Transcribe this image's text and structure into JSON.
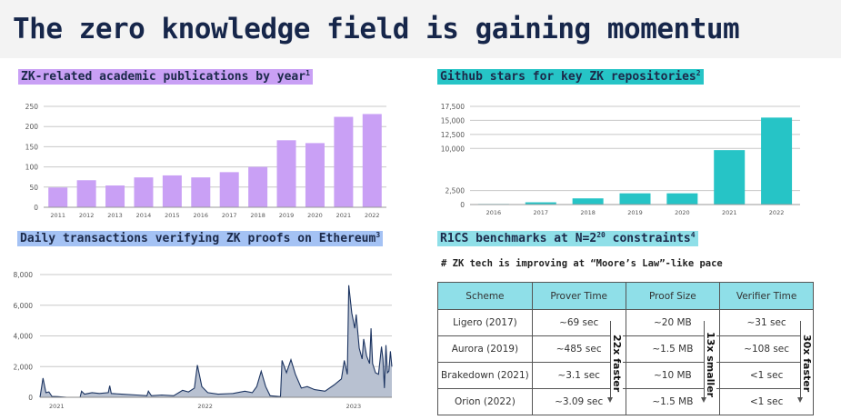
{
  "title": "The zero knowledge field is gaining momentum",
  "colors": {
    "purple": "#c9a0f5",
    "teal": "#26c4c6",
    "blue_hl": "#a4c2f4",
    "line": "#1c3461",
    "area": "#b8c1d1",
    "table_header": "#8fdfe8"
  },
  "chart_data": [
    {
      "type": "bar",
      "title": "ZK-related academic publications by year",
      "footnote_mark": "1",
      "categories": [
        "2011",
        "2012",
        "2013",
        "2014",
        "2015",
        "2016",
        "2017",
        "2018",
        "2019",
        "2020",
        "2021",
        "2022"
      ],
      "values": [
        49,
        67,
        54,
        74,
        79,
        74,
        87,
        100,
        166,
        159,
        224,
        231
      ],
      "yticks": [
        "0",
        "50",
        "100",
        "150",
        "200",
        "250"
      ],
      "ylim": [
        0,
        250
      ],
      "grid": true
    },
    {
      "type": "bar",
      "title": "Github stars for key ZK repositories",
      "footnote_mark": "2",
      "categories": [
        "2016",
        "2017",
        "2018",
        "2019",
        "2020",
        "2021",
        "2022"
      ],
      "values": [
        100,
        400,
        1100,
        2000,
        2000,
        9700,
        15500
      ],
      "yticks": [
        "0",
        "2,500",
        "10,000",
        "12,500",
        "15,000",
        "17,500"
      ],
      "ylim": [
        0,
        17500
      ],
      "grid": true
    },
    {
      "type": "area",
      "title": "Daily transactions verifying ZK proofs on Ethereum",
      "footnote_mark": "3",
      "xticks": [
        "2021",
        "2022",
        "2023"
      ],
      "xlim": [
        2020.9,
        2023.27
      ],
      "yticks": [
        "0",
        "2,000",
        "4,000",
        "6,000",
        "8,000"
      ],
      "ylim": [
        0,
        8000
      ],
      "grid": true,
      "x": [
        2020.9,
        2020.92,
        2020.94,
        2020.96,
        2020.98,
        2021.02,
        2021.08,
        2021.17,
        2021.18,
        2021.2,
        2021.25,
        2021.3,
        2021.36,
        2021.37,
        2021.38,
        2021.45,
        2021.55,
        2021.62,
        2021.63,
        2021.65,
        2021.72,
        2021.8,
        2021.86,
        2021.9,
        2021.94,
        2021.96,
        2021.99,
        2022.03,
        2022.1,
        2022.2,
        2022.28,
        2022.33,
        2022.36,
        2022.39,
        2022.42,
        2022.45,
        2022.51,
        2022.52,
        2022.53,
        2022.56,
        2022.59,
        2022.62,
        2022.66,
        2022.7,
        2022.75,
        2022.82,
        2022.88,
        2022.93,
        2022.95,
        2022.97,
        2022.98,
        2023.0,
        2023.02,
        2023.03,
        2023.05,
        2023.07,
        2023.08,
        2023.1,
        2023.12,
        2023.13,
        2023.14,
        2023.16,
        2023.18,
        2023.2,
        2023.21,
        2023.22,
        2023.23,
        2023.24,
        2023.25,
        2023.26,
        2023.27
      ],
      "values": [
        0,
        1250,
        300,
        350,
        60,
        40,
        0,
        0,
        400,
        200,
        300,
        250,
        300,
        750,
        250,
        200,
        150,
        100,
        400,
        100,
        150,
        100,
        450,
        350,
        600,
        2100,
        700,
        300,
        200,
        250,
        400,
        300,
        700,
        1700,
        700,
        100,
        50,
        50,
        2400,
        1600,
        2450,
        1500,
        600,
        700,
        500,
        400,
        800,
        1200,
        2400,
        1500,
        7300,
        5500,
        4500,
        5400,
        3200,
        2500,
        3800,
        2700,
        2200,
        4500,
        2200,
        1600,
        1500,
        3300,
        2500,
        600,
        3400,
        1600,
        1700,
        3000,
        2000
      ]
    }
  ],
  "benchmarks": {
    "title": "R1CS benchmarks at N=2",
    "exponent": "20",
    "title_suffix": " constraints",
    "footnote_mark": "4",
    "subtitle": "# ZK tech is improving at “Moore’s Law”-like pace",
    "headers": [
      "Scheme",
      "Prover Time",
      "Proof Size",
      "Verifier Time"
    ],
    "rows": [
      [
        "Ligero (2017)",
        "~69 sec",
        "~20 MB",
        "~31 sec"
      ],
      [
        "Aurora (2019)",
        "~485 sec",
        "~1.5 MB",
        "~108 sec"
      ],
      [
        "Brakedown (2021)",
        "~3.1 sec",
        "~10 MB",
        "<1 sec"
      ],
      [
        "Orion (2022)",
        "~3.09 sec",
        "~1.5 MB",
        "<1 sec"
      ]
    ],
    "annotations": [
      "22x faster",
      "13x smaller",
      "30x faster"
    ]
  }
}
